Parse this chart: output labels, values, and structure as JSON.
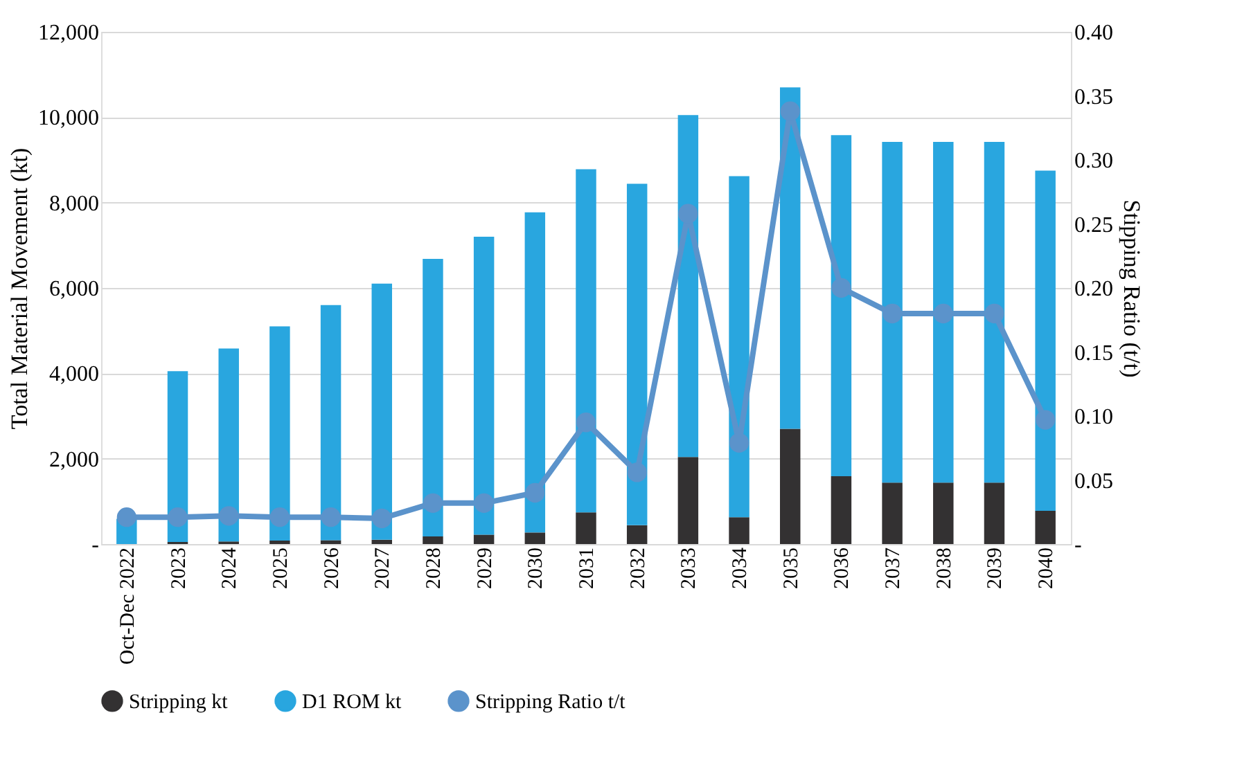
{
  "chart_data": {
    "type": "bar",
    "stacked": true,
    "categories": [
      "Oct-Dec 2022",
      "2023",
      "2024",
      "2025",
      "2026",
      "2027",
      "2028",
      "2029",
      "2030",
      "2031",
      "2032",
      "2033",
      "2034",
      "2035",
      "2036",
      "2037",
      "2038",
      "2039",
      "2040"
    ],
    "ylabel": "Total Material Movement (kt)",
    "y2label": "Stipping Ratio (t/t)",
    "ylim": [
      0,
      12000
    ],
    "yticks": [
      {
        "value": 0,
        "label": "-"
      },
      {
        "value": 2000,
        "label": "2,000"
      },
      {
        "value": 4000,
        "label": "4,000"
      },
      {
        "value": 6000,
        "label": "6,000"
      },
      {
        "value": 8000,
        "label": "8,000"
      },
      {
        "value": 10000,
        "label": "10,000"
      },
      {
        "value": 12000,
        "label": "12,000"
      }
    ],
    "y2lim": [
      0,
      0.4
    ],
    "y2ticks": [
      {
        "value": 0,
        "label": "-"
      },
      {
        "value": 0.05,
        "label": "0.05"
      },
      {
        "value": 0.1,
        "label": "0.10"
      },
      {
        "value": 0.15,
        "label": "0.15"
      },
      {
        "value": 0.2,
        "label": "0.20"
      },
      {
        "value": 0.25,
        "label": "0.25"
      },
      {
        "value": 0.3,
        "label": "0.30"
      },
      {
        "value": 0.35,
        "label": "0.35"
      },
      {
        "value": 0.4,
        "label": "0.40"
      }
    ],
    "grid": "y",
    "legend": "bottom",
    "series": [
      {
        "name": "Stripping kt",
        "color": "#333132",
        "values": [
          null,
          50,
          60,
          80,
          90,
          100,
          180,
          220,
          270,
          740,
          440,
          2040,
          630,
          2700,
          1590,
          1440,
          1440,
          1440,
          780
        ]
      },
      {
        "name": "D1 ROM kt",
        "color": "#29a6df",
        "values": [
          590,
          4000,
          4520,
          5020,
          5510,
          6000,
          6500,
          6980,
          7500,
          8040,
          8000,
          8010,
          7990,
          8000,
          7990,
          7980,
          7980,
          7980,
          7970
        ]
      },
      {
        "name": "Stripping Ratio t/t",
        "type": "line",
        "axis": "y2",
        "color": "#5b93cb",
        "marker": "circle",
        "line_style": "solid",
        "values": [
          0.021,
          0.021,
          0.022,
          0.021,
          0.021,
          0.02,
          0.032,
          0.032,
          0.04,
          0.095,
          0.056,
          0.258,
          0.079,
          0.338,
          0.2,
          0.18,
          0.18,
          0.18,
          0.097
        ]
      }
    ]
  }
}
